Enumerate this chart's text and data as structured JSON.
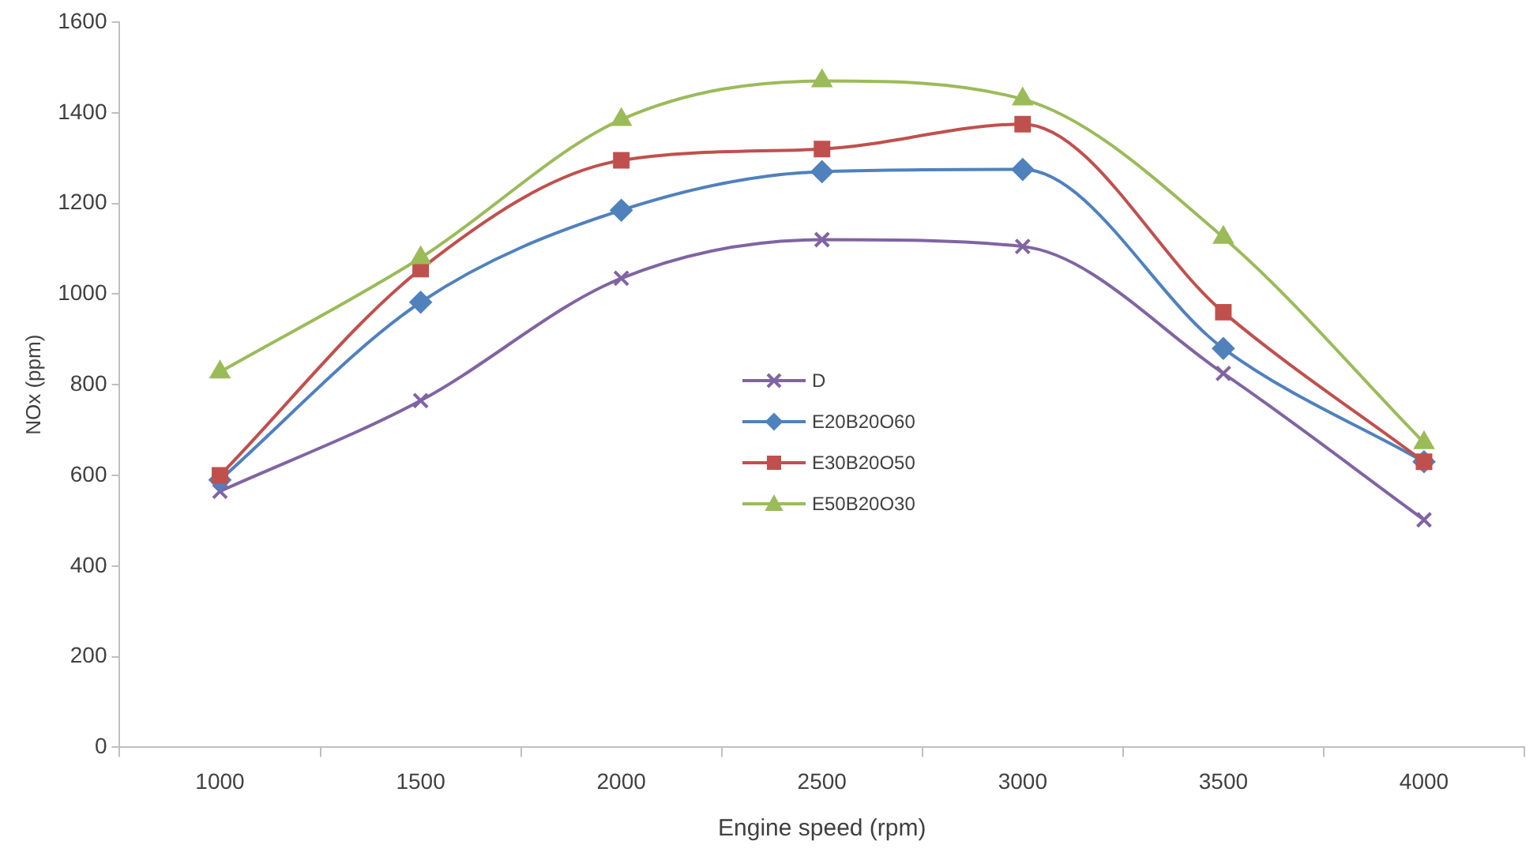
{
  "chart_data": {
    "type": "line",
    "xlabel": "Engine speed (rpm)",
    "ylabel": "NOx (ppm)",
    "categories": [
      "1000",
      "1500",
      "2000",
      "2500",
      "3000",
      "3500",
      "4000"
    ],
    "ylim": [
      0,
      1600
    ],
    "yticks": [
      0,
      200,
      400,
      600,
      800,
      1000,
      1200,
      1400,
      1600
    ],
    "grid": false,
    "legend": "center",
    "line_style": "solid",
    "series": [
      {
        "name": "D",
        "color": "#8064a2",
        "marker": "cross",
        "values": [
          565,
          765,
          1035,
          1120,
          1105,
          825,
          502
        ]
      },
      {
        "name": "E20B20O60",
        "color": "#4f81bd",
        "marker": "diamond",
        "values": [
          590,
          982,
          1185,
          1270,
          1275,
          880,
          630
        ]
      },
      {
        "name": "E30B20O50",
        "color": "#c0504d",
        "marker": "square",
        "values": [
          600,
          1055,
          1295,
          1320,
          1375,
          960,
          630
        ]
      },
      {
        "name": "E50B20O30",
        "color": "#9bbb59",
        "marker": "triangle",
        "values": [
          828,
          1080,
          1385,
          1470,
          1430,
          1125,
          672
        ]
      }
    ]
  }
}
